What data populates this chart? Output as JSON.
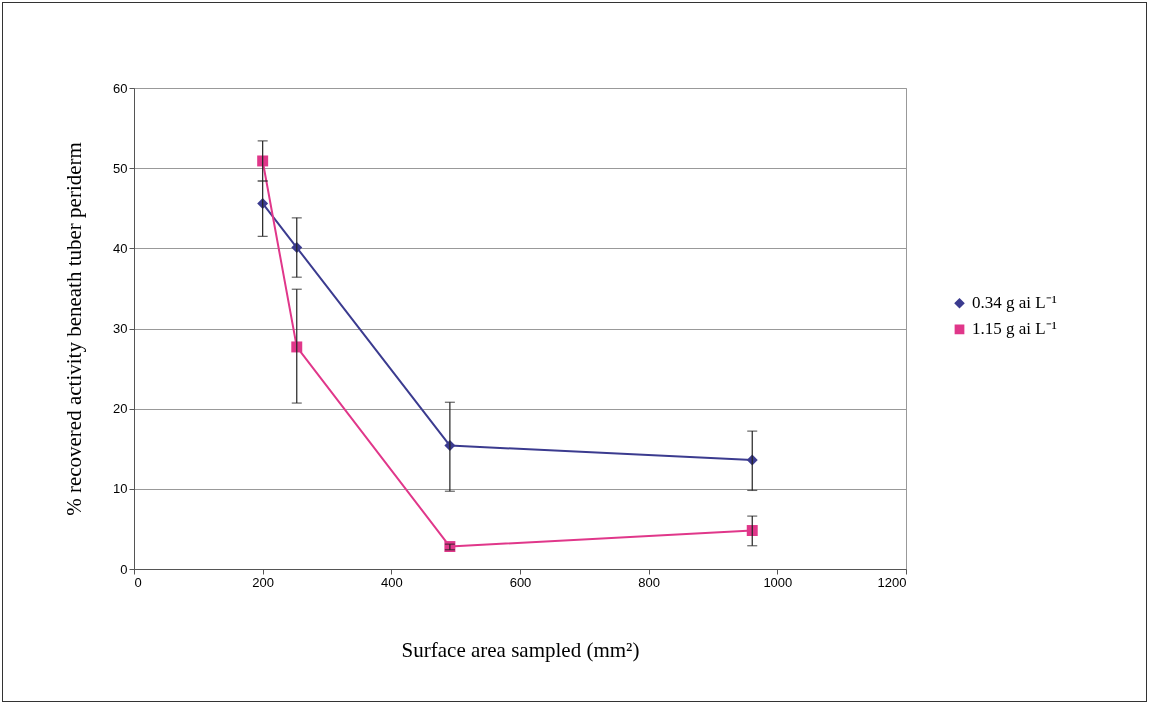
{
  "chart_data": {
    "type": "line",
    "xlabel": "Surface area sampled (mm²)",
    "ylabel": "% recovered activity beneath tuber periderm",
    "xlim": [
      0,
      1200
    ],
    "xticks": [
      0,
      200,
      400,
      600,
      800,
      1000,
      1200
    ],
    "ylim": [
      0,
      60
    ],
    "yticks": [
      0,
      10,
      20,
      30,
      40,
      50,
      60
    ],
    "grid": "y",
    "legend": "right",
    "line_style": "solid",
    "series": [
      {
        "name": "0.34  g ai L⁻¹",
        "color": "#3b3b8f",
        "marker": "diamond",
        "x": [
          200,
          253,
          491,
          961
        ],
        "values": [
          45.6,
          40.1,
          15.4,
          13.6
        ],
        "errors": [
          [
            41.5,
            48.4
          ],
          [
            36.4,
            43.8
          ],
          [
            9.7,
            20.8
          ],
          [
            9.8,
            17.2
          ]
        ]
      },
      {
        "name": "1.15  g ai L⁻¹",
        "color": "#e0378a",
        "marker": "square",
        "x": [
          200,
          253,
          491,
          961
        ],
        "values": [
          50.9,
          27.7,
          2.8,
          4.8
        ],
        "errors": [
          [
            48.4,
            53.4
          ],
          [
            20.7,
            34.9
          ],
          [
            2.4,
            3.1
          ],
          [
            2.9,
            6.6
          ]
        ]
      }
    ]
  }
}
